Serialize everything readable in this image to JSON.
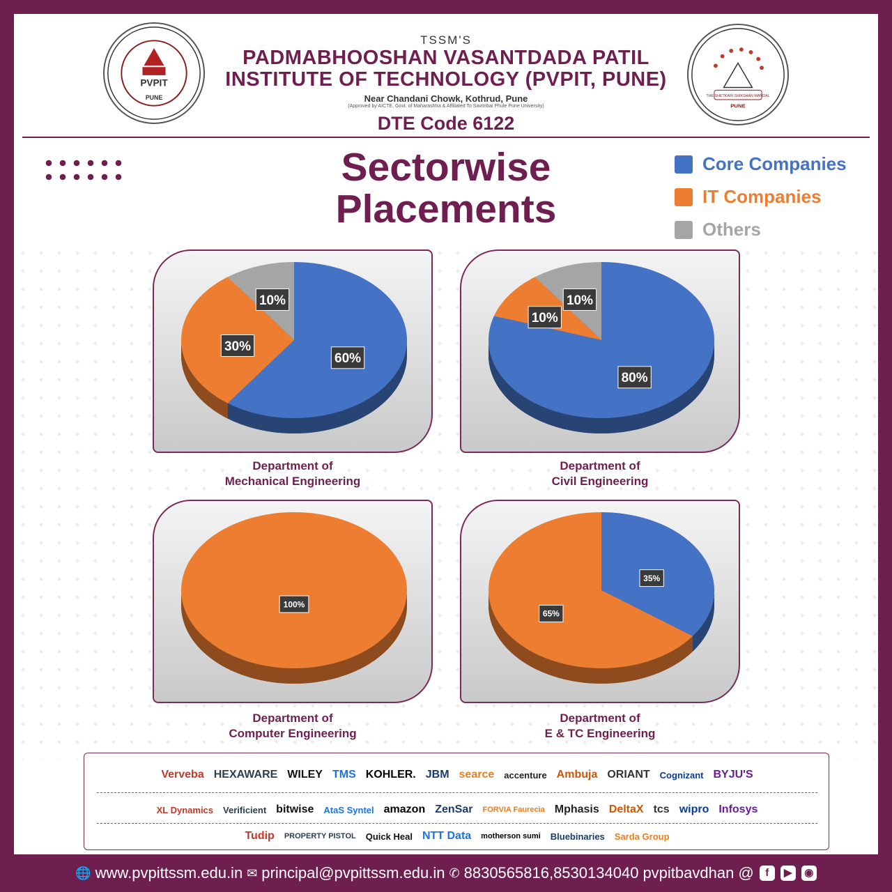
{
  "header": {
    "tssm": "TSSM'S",
    "name_line1": "PADMABHOOSHAN VASANTDADA PATIL",
    "name_line2": "INSTITUTE OF TECHNOLOGY (PVPIT, PUNE)",
    "address": "Near Chandani Chowk, Kothrud, Pune",
    "approval": "(Approved by AICTE, Govt. of Maharashtra & Affiliated To Savitribai Phule Pune University)",
    "dte_code": "DTE Code 6122",
    "left_seal_text": "PVPIT",
    "left_seal_sub": "PUNE",
    "right_seal_text": "THE SHETKARI SHIKSHAN MANDAL",
    "right_seal_sub": "PUNE"
  },
  "title_line1": "Sectorwise",
  "title_line2": "Placements",
  "colors": {
    "core": "#4472c4",
    "it": "#ed7d31",
    "others": "#a5a5a5",
    "brand": "#6f1f4f"
  },
  "legend": [
    {
      "label": "Core Companies",
      "color": "#4472c4"
    },
    {
      "label": "IT Companies",
      "color": "#ed7d31"
    },
    {
      "label": "Others",
      "color": "#a5a5a5"
    }
  ],
  "chart_data": [
    {
      "type": "pie",
      "title": "Department of Mechanical Engineering",
      "title_line1": "Department of",
      "title_line2": "Mechanical Engineering",
      "slices": [
        {
          "name": "Core Companies",
          "value": 60
        },
        {
          "name": "IT Companies",
          "value": 30
        },
        {
          "name": "Others",
          "value": 10
        }
      ]
    },
    {
      "type": "pie",
      "title": "Department of Civil Engineering",
      "title_line1": "Department of",
      "title_line2": "Civil Engineering",
      "slices": [
        {
          "name": "Core Companies",
          "value": 80
        },
        {
          "name": "IT Companies",
          "value": 10
        },
        {
          "name": "Others",
          "value": 10
        }
      ]
    },
    {
      "type": "pie",
      "title": "Department of Computer Engineering",
      "title_line1": "Department of",
      "title_line2": "Computer Engineering",
      "slices": [
        {
          "name": "IT Companies",
          "value": 100
        }
      ]
    },
    {
      "type": "pie",
      "title": "Department of E & TC Engineering",
      "title_line1": "Department of",
      "title_line2": "E & TC Engineering",
      "slices": [
        {
          "name": "Core Companies",
          "value": 35
        },
        {
          "name": "IT Companies",
          "value": 65
        }
      ]
    }
  ],
  "recruiters": {
    "row1": [
      "Verveba",
      "HEXAWARE",
      "WILEY",
      "TMS",
      "KOHLER.",
      "JBM",
      "searce",
      "accenture",
      "Ambuja",
      "ORIANT",
      "Cognizant",
      "BYJU'S"
    ],
    "row2": [
      "XL Dynamics",
      "Verificient",
      "bitwise",
      "AtaS Syntel",
      "amazon",
      "ZenSar",
      "FORVIA Faurecia",
      "Mphasis",
      "DeltaX",
      "tcs",
      "wipro",
      "Infosys"
    ],
    "row3": [
      "Tudip",
      "PROPERTY PISTOL",
      "Quick Heal",
      "NTT Data",
      "motherson sumi",
      "Bluebinaries",
      "Sarda Group"
    ]
  },
  "footer": {
    "website": "www.pvpittssm.edu.in",
    "email": "principal@pvpittssm.edu.in",
    "phone": "8830565816,8530134040",
    "handle": "pvpitbavdhan @"
  }
}
